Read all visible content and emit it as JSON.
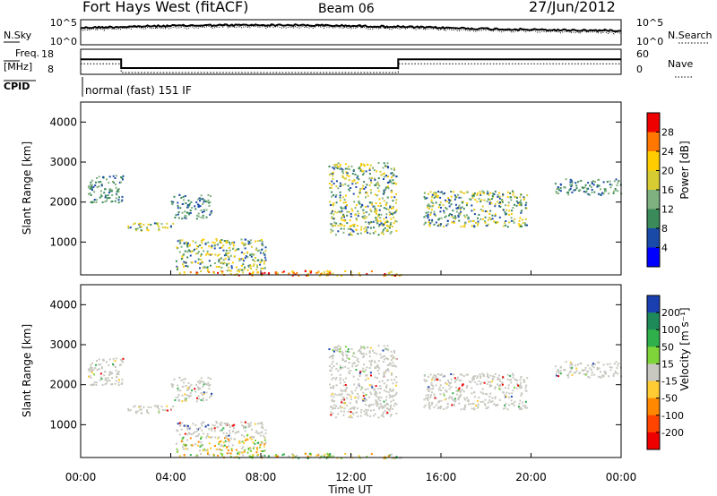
{
  "header": {
    "station": "Fort Hays West (fitACF)",
    "beam": "Beam 06",
    "date": "27/Jun/2012"
  },
  "noise_panel": {
    "left_label": "N.Sky",
    "right_label": "N.Search",
    "left_ticks": [
      "10^5",
      "10^0"
    ],
    "right_ticks": [
      "10^5",
      "10^0"
    ]
  },
  "freq_panel": {
    "left_label_1": "Freq.",
    "left_label_2": "[MHz]",
    "right_label": "Nave",
    "left_ticks": [
      "18",
      "8"
    ],
    "right_ticks": [
      "60",
      "0"
    ]
  },
  "cpid_panel": {
    "label": "CPID",
    "text": "normal (fast) 151 IF"
  },
  "power_panel": {
    "ylabel": "Slant Range [km]",
    "colorbar_label": "Power [dB]",
    "colorbar_ticks": [
      "28",
      "24",
      "20",
      "16",
      "12",
      "8",
      "4"
    ],
    "colorbar_colors": [
      "#ee0000",
      "#ff7700",
      "#ffcc00",
      "#d8cc33",
      "#7fb07f",
      "#3a8a5a",
      "#1a4aa8",
      "#0000ff"
    ]
  },
  "velocity_panel": {
    "ylabel": "Slant Range [km]",
    "colorbar_label": "Velocity [m s⁻¹]",
    "colorbar_ticks": [
      "200",
      "100",
      "50",
      "15",
      "-15",
      "-50",
      "-100",
      "-200"
    ],
    "colorbar_colors": [
      "#1a3fb0",
      "#1e8a5a",
      "#2fb04a",
      "#7fd43a",
      "#c8c8c0",
      "#ffcc33",
      "#ff8800",
      "#ff4400",
      "#ee0000"
    ]
  },
  "xaxis": {
    "label": "Time UT",
    "ticks": [
      "00:00",
      "04:00",
      "08:00",
      "12:00",
      "16:00",
      "20:00",
      "00:00"
    ]
  },
  "chart_data": {
    "type": "heatmap",
    "title": "Fort Hays West (fitACF)",
    "x_range_hours": [
      0,
      24
    ],
    "y_range_km": [
      180,
      4500
    ],
    "y_ticks": [
      1000,
      2000,
      3000,
      4000
    ],
    "frequency_mhz": [
      {
        "x": 0,
        "y": 14
      },
      {
        "x": 1.8,
        "y": 14
      },
      {
        "x": 1.8,
        "y": 10.5
      },
      {
        "x": 14.1,
        "y": 10.5
      },
      {
        "x": 14.1,
        "y": 14
      },
      {
        "x": 24,
        "y": 14
      }
    ],
    "power_regions": [
      {
        "t0": 0.3,
        "t1": 1.9,
        "r0": 2000,
        "r1": 2700,
        "level": "low"
      },
      {
        "t0": 1.9,
        "t1": 4.2,
        "r0": 1300,
        "r1": 1500,
        "level": "mid"
      },
      {
        "t0": 4.0,
        "t1": 5.8,
        "r0": 1600,
        "r1": 2200,
        "level": "low"
      },
      {
        "t0": 4.2,
        "t1": 8.2,
        "r0": 300,
        "r1": 1100,
        "level": "mid"
      },
      {
        "t0": 4.2,
        "t1": 14.2,
        "r0": 180,
        "r1": 300,
        "level": "high"
      },
      {
        "t0": 11.0,
        "t1": 14.0,
        "r0": 1200,
        "r1": 3000,
        "level": "mid"
      },
      {
        "t0": 15.2,
        "t1": 19.8,
        "r0": 1400,
        "r1": 2300,
        "level": "mid"
      },
      {
        "t0": 21.0,
        "t1": 24.0,
        "r0": 2200,
        "r1": 2600,
        "level": "low"
      }
    ]
  }
}
